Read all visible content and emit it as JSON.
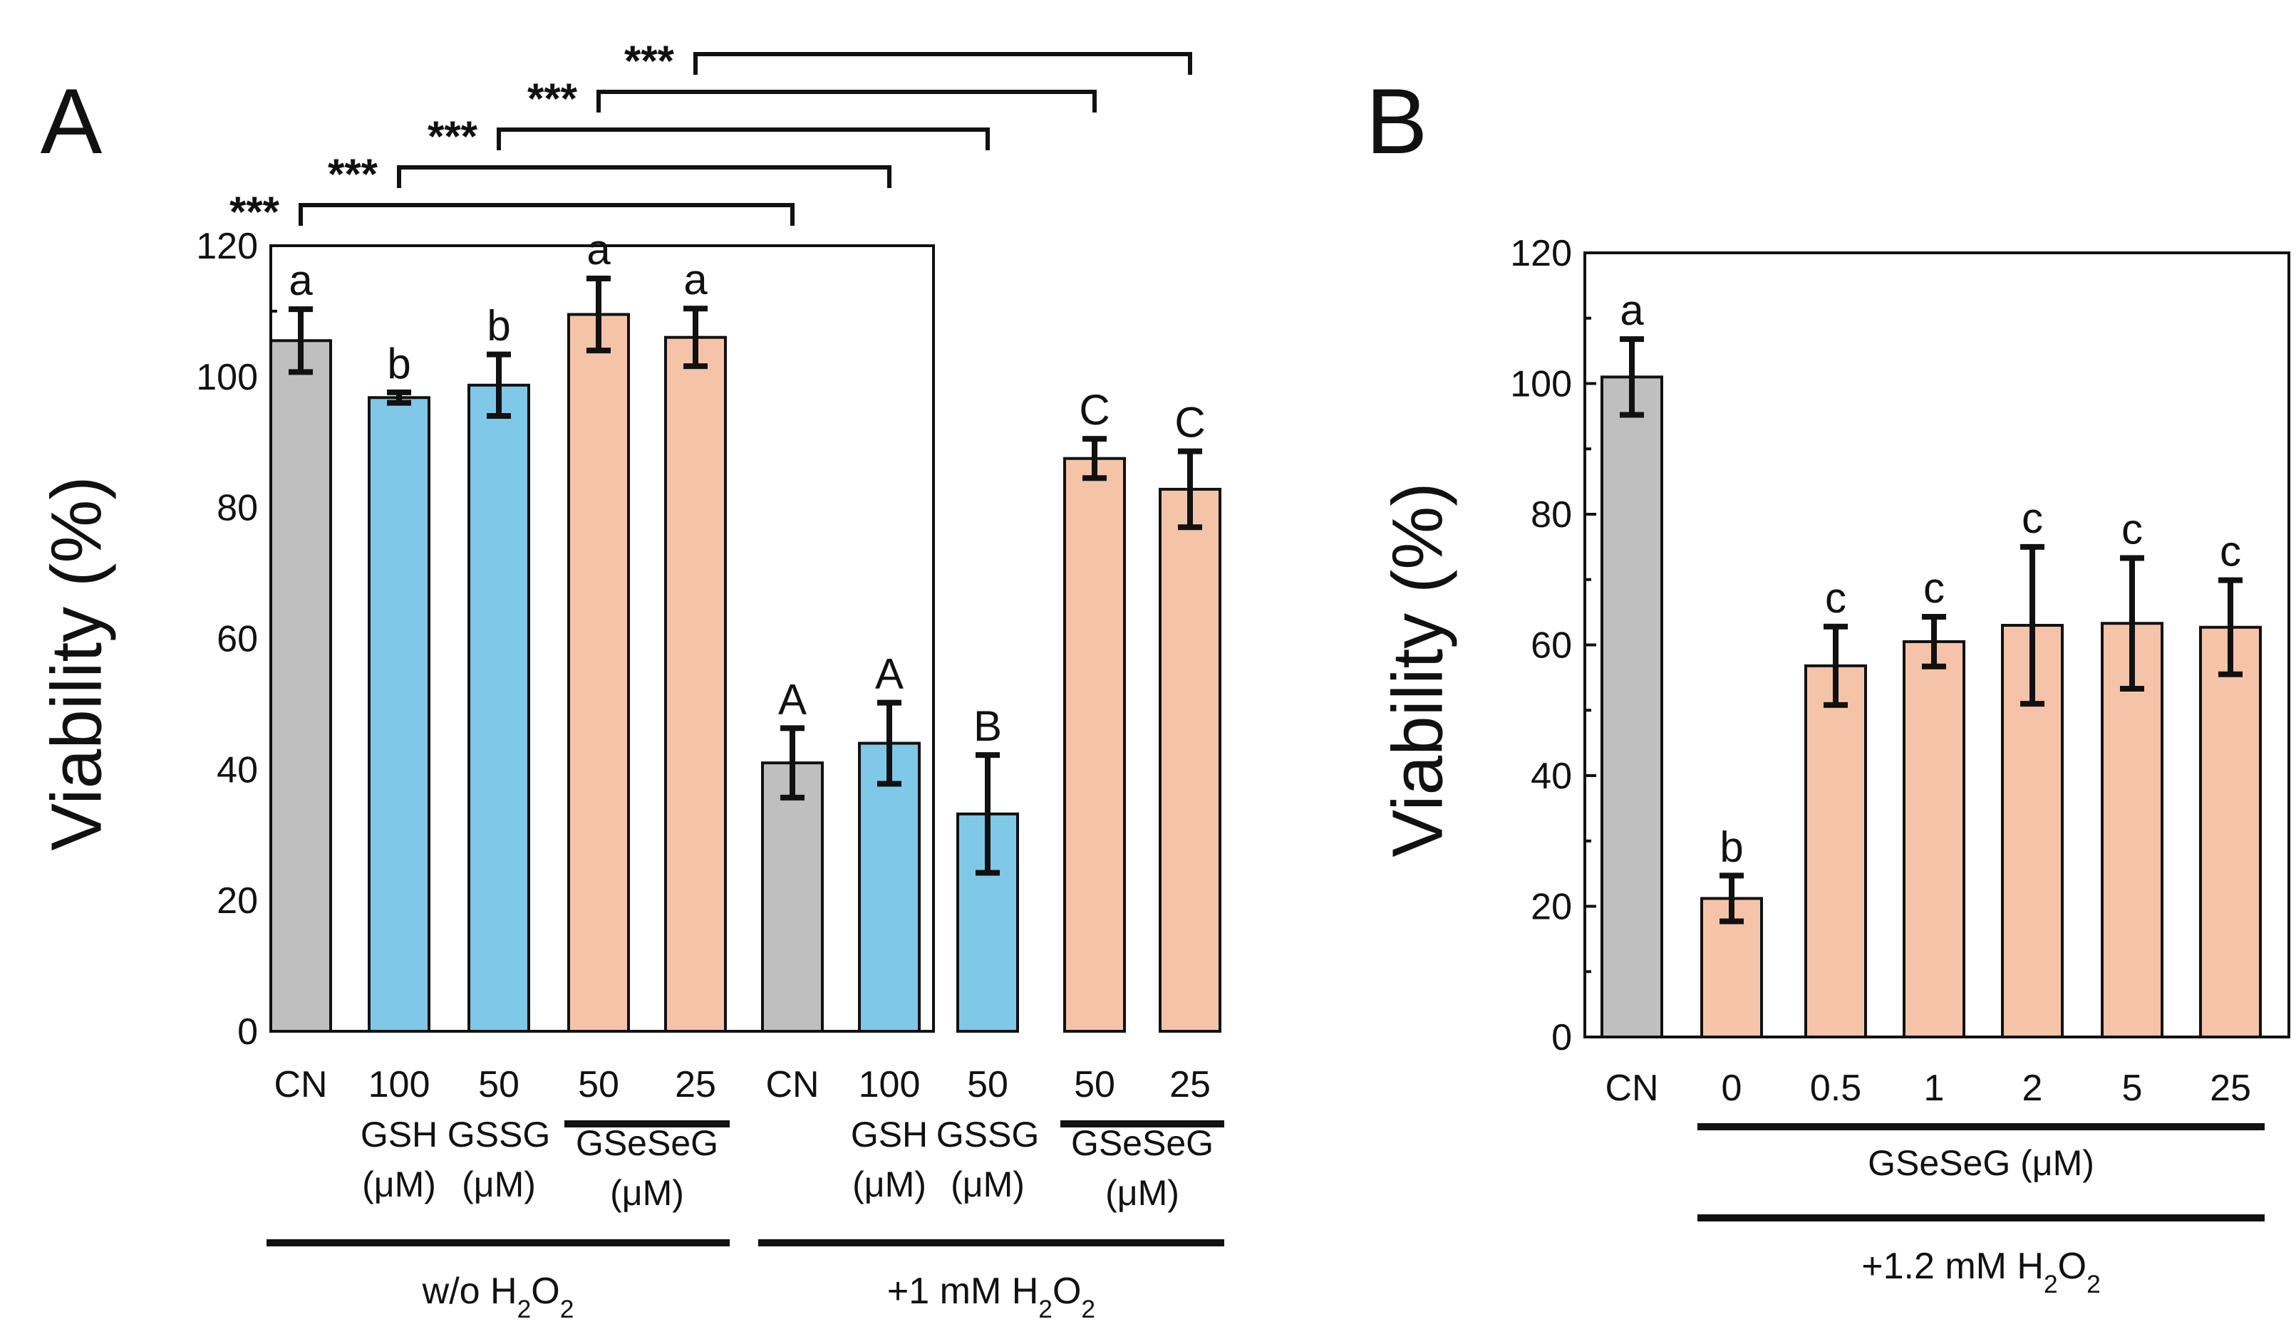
{
  "colors": {
    "control": "#bfbfbf",
    "glutathione": "#7fc8e8",
    "gseseg": "#f5c4a8",
    "ink": "#111111"
  },
  "chart_data": [
    {
      "panel": "A",
      "type": "bar",
      "ylabel": "Viability (%)",
      "ylim": [
        0,
        120
      ],
      "yticks": [
        "0",
        "20",
        "40",
        "60",
        "80",
        "100",
        "120"
      ],
      "categories": [
        "CN",
        "100",
        "50",
        "50",
        "25",
        "CN",
        "100",
        "50",
        "50",
        "25"
      ],
      "values": [
        105.5,
        96.8,
        98.7,
        109.5,
        106.0,
        41.0,
        44.0,
        33.2,
        87.5,
        82.8
      ],
      "errors": [
        4.8,
        0.8,
        4.7,
        5.5,
        4.4,
        5.3,
        6.2,
        9.0,
        3.0,
        5.8
      ],
      "letters": [
        "a",
        "b",
        "b",
        "a",
        "a",
        "A",
        "A",
        "B",
        "C",
        "C"
      ],
      "color_keys": [
        "control",
        "glutathione",
        "glutathione",
        "gseseg",
        "gseseg",
        "control",
        "glutathione",
        "glutathione",
        "gseseg",
        "gseseg"
      ],
      "compound_labels": [
        {
          "name": "GSH",
          "unit": "(μM)",
          "bars": [
            1
          ]
        },
        {
          "name": "GSSG",
          "unit": "(μM)",
          "bars": [
            2
          ]
        },
        {
          "name": "GSeSeG",
          "unit": "(μM)",
          "bars": [
            3,
            4
          ],
          "underline": true
        },
        {
          "name": "GSH",
          "unit": "(μM)",
          "bars": [
            6
          ]
        },
        {
          "name": "GSSG",
          "unit": "(μM)",
          "bars": [
            7
          ]
        },
        {
          "name": "GSeSeG",
          "unit": "(μM)",
          "bars": [
            8,
            9
          ],
          "underline": true
        }
      ],
      "condition_groups": [
        {
          "prefix": "w/o H",
          "sub": "2",
          "mid": "O",
          "sub2": "2",
          "bars": [
            0,
            4
          ]
        },
        {
          "prefix": "+1 mM H",
          "sub": "2",
          "mid": "O",
          "sub2": "2",
          "bars": [
            5,
            9
          ]
        }
      ],
      "significance_brackets": [
        {
          "from": 0,
          "to": 5,
          "label": "***"
        },
        {
          "from": 1,
          "to": 6,
          "label": "***"
        },
        {
          "from": 2,
          "to": 7,
          "label": "***"
        },
        {
          "from": 3,
          "to": 8,
          "label": "***"
        },
        {
          "from": 4,
          "to": 9,
          "label": "***"
        }
      ]
    },
    {
      "panel": "B",
      "type": "bar",
      "ylabel": "Viability (%)",
      "ylim": [
        0,
        120
      ],
      "yticks": [
        "0",
        "20",
        "40",
        "60",
        "80",
        "100",
        "120"
      ],
      "categories": [
        "CN",
        "0",
        "0.5",
        "1",
        "2",
        "5",
        "25"
      ],
      "values": [
        101.0,
        21.2,
        56.8,
        60.5,
        63.0,
        63.3,
        62.7
      ],
      "errors": [
        5.8,
        3.5,
        6.0,
        3.8,
        12.0,
        10.0,
        7.2
      ],
      "letters": [
        "a",
        "b",
        "c",
        "c",
        "c",
        "c",
        "c"
      ],
      "color_keys": [
        "control",
        "gseseg",
        "gseseg",
        "gseseg",
        "gseseg",
        "gseseg",
        "gseseg"
      ],
      "compound_labels": [
        {
          "name": "GSeSeG",
          "unit": "(μM)",
          "bars": [
            1,
            6
          ],
          "underline": true
        }
      ],
      "condition_groups": [
        {
          "prefix": "+1.2 mM H",
          "sub": "2",
          "mid": "O",
          "sub2": "2",
          "bars": [
            1,
            6
          ]
        }
      ],
      "significance_brackets": []
    }
  ]
}
